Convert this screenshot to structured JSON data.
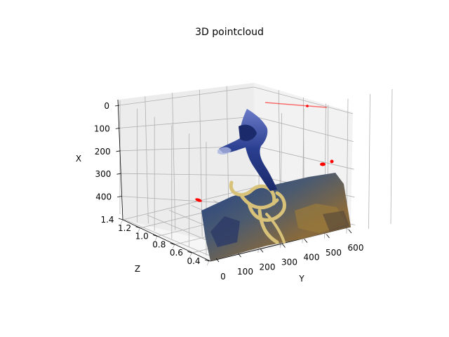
{
  "chart_data": {
    "type": "scatter",
    "projection": "3d",
    "title": "3D pointcloud",
    "xlabel": "Y",
    "ylabel": "Z",
    "zlabel": "X",
    "x_ticks": [
      "0",
      "100",
      "200",
      "300",
      "400",
      "500",
      "600"
    ],
    "y_ticks": [
      "0.4",
      "0.6",
      "0.8",
      "1.0",
      "1.2",
      "1.4"
    ],
    "z_ticks": [
      "0",
      "100",
      "200",
      "300",
      "400"
    ],
    "grid": true,
    "colors": {
      "pane_back": "#f2f2f2",
      "pane_left": "#ececec",
      "pane_floor": "#f6f6f6",
      "grid": "#b0b0b0",
      "outlier": "#ff0000",
      "diver": "#2a3e8f",
      "rope": "#d8c27a",
      "seabed": "#5a6a8a"
    }
  }
}
